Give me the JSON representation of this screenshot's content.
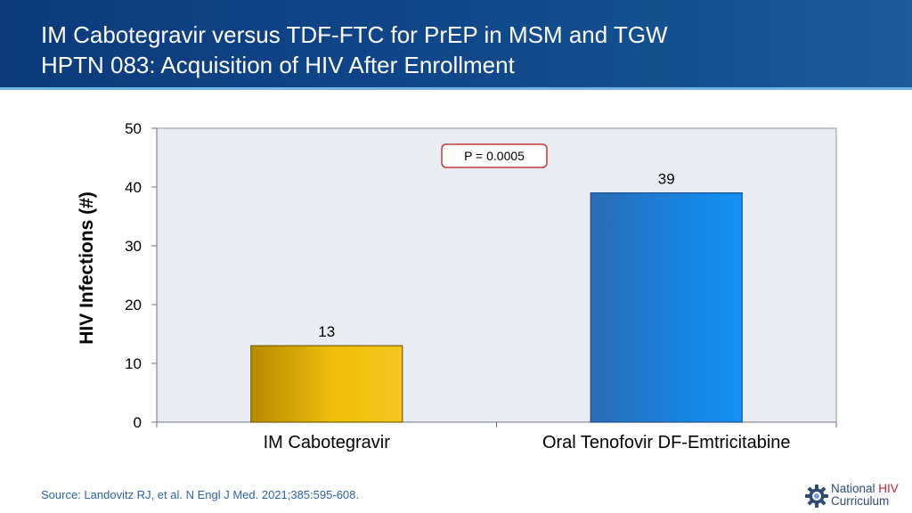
{
  "header": {
    "title_line1": "IM Cabotegravir versus TDF-FTC for PrEP in MSM and TGW",
    "title_line2": "HPTN 083: Acquisition of HIV After Enrollment"
  },
  "chart_data": {
    "type": "bar",
    "categories": [
      "IM Cabotegravir",
      "Oral Tenofovir DF-Emtricitabine"
    ],
    "values": [
      13,
      39
    ],
    "data_labels": [
      "13",
      "39"
    ],
    "ylabel": "HIV Infections (#)",
    "xlabel": "",
    "ylim": [
      0,
      50
    ],
    "yticks": [
      0,
      10,
      20,
      30,
      40,
      50
    ],
    "annotation": "P = 0.0005",
    "grid": false,
    "colors": [
      "#e8b400",
      "#1a7fd6"
    ]
  },
  "footer": {
    "source": "Source: Landovitz RJ, et al. N Engl J Med. 2021;385:595-608.",
    "logo_word1": "National",
    "logo_word2": "HIV",
    "logo_word3": "Curriculum"
  },
  "colors": {
    "header_bg": "#0f4588",
    "plot_bg": "#e9ecf2",
    "source_text": "#2e63a6",
    "annotation_border": "#c23b3b"
  },
  "icons": {
    "logo": "gear-logo-icon"
  }
}
